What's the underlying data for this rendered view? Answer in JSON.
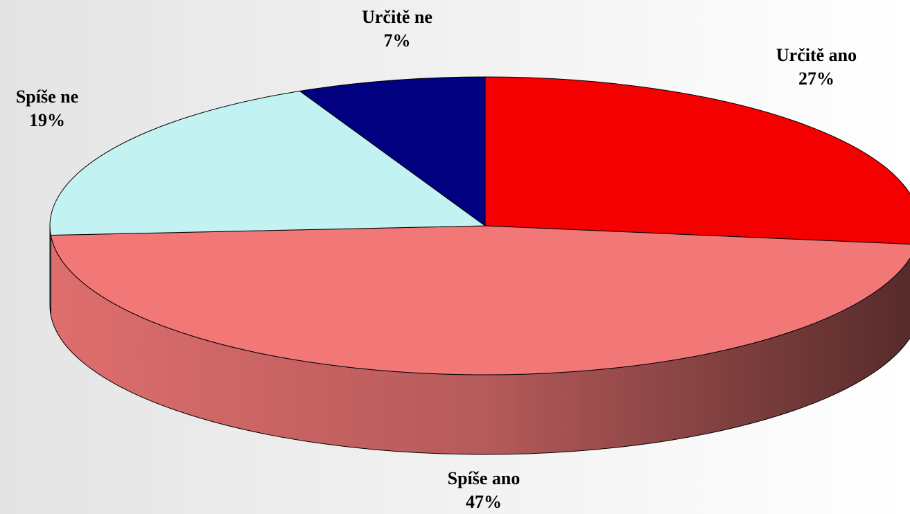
{
  "chart_data": {
    "type": "pie",
    "categories": [
      "Určitě ano",
      "Spíše ano",
      "Spíše ne",
      "Určitě ne"
    ],
    "values": [
      27,
      47,
      19,
      7
    ],
    "value_labels": [
      "27%",
      "47%",
      "19%",
      "7%"
    ],
    "colors": [
      "#f50000",
      "#f27878",
      "#c2f2f2",
      "#000080"
    ]
  }
}
